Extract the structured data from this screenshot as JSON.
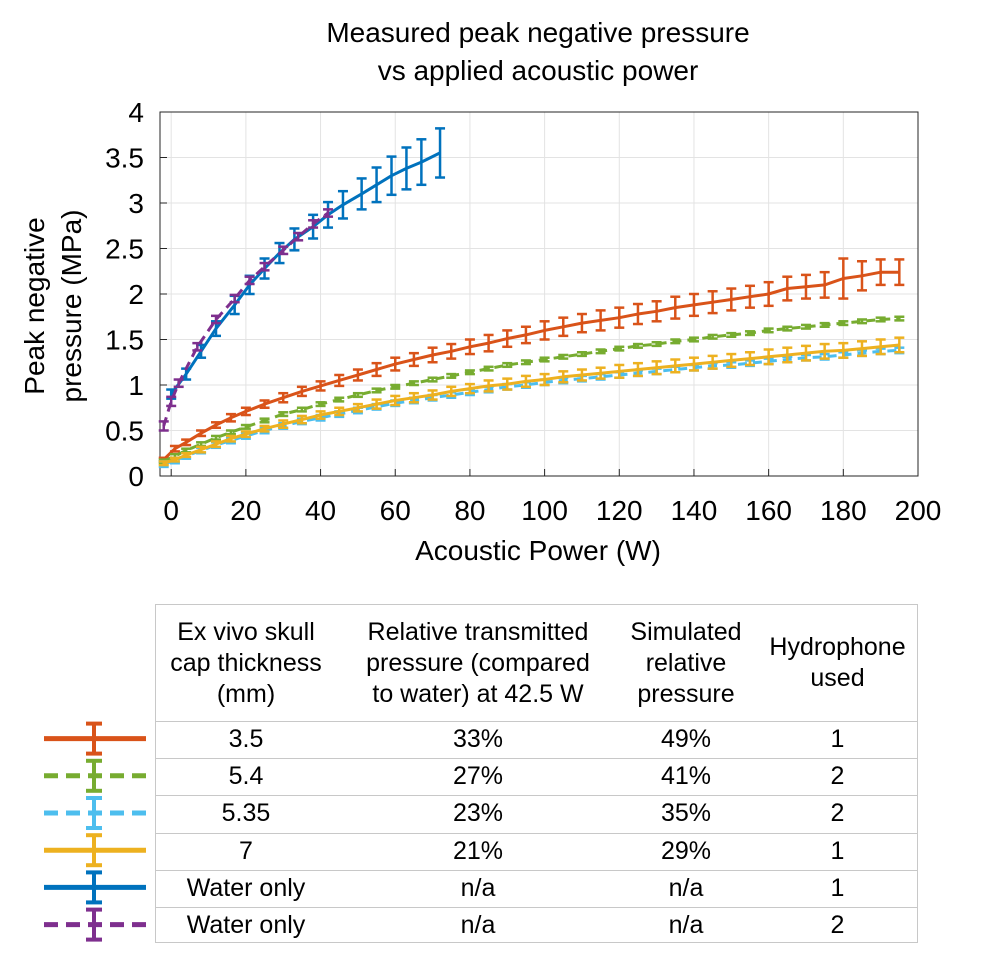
{
  "chart_data": {
    "type": "line",
    "title": "Measured peak negative pressure\nvs applied acoustic power",
    "title_lines": [
      "Measured peak negative pressure",
      "vs applied acoustic power"
    ],
    "xlabel": "Acoustic Power (W)",
    "ylabel_lines": [
      "Peak negative",
      "pressure (MPa)"
    ],
    "xlim": [
      -3,
      200
    ],
    "ylim": [
      0,
      4
    ],
    "xticks": [
      0,
      20,
      40,
      60,
      80,
      100,
      120,
      140,
      160,
      180,
      200
    ],
    "yticks": [
      0,
      0.5,
      1,
      1.5,
      2,
      2.5,
      3,
      3.5,
      4
    ],
    "xtick_labels": [
      "0",
      "20",
      "40",
      "60",
      "80",
      "100",
      "120",
      "140",
      "160",
      "180",
      "200"
    ],
    "ytick_labels": [
      "0",
      "0.5",
      "1",
      "1.5",
      "2",
      "2.5",
      "3",
      "3.5",
      "4"
    ],
    "grid": true,
    "series": [
      {
        "name": "3.5 mm skull",
        "color": "#D95319",
        "dash": "solid",
        "x": [
          -2,
          1,
          4,
          8,
          12,
          16,
          20,
          25,
          30,
          35,
          40,
          45,
          50,
          55,
          60,
          65,
          70,
          75,
          80,
          85,
          90,
          95,
          100,
          105,
          110,
          115,
          120,
          125,
          130,
          135,
          140,
          145,
          150,
          155,
          160,
          165,
          170,
          175,
          180,
          185,
          190,
          195
        ],
        "y": [
          0.18,
          0.3,
          0.37,
          0.47,
          0.56,
          0.64,
          0.71,
          0.79,
          0.86,
          0.93,
          0.99,
          1.05,
          1.11,
          1.17,
          1.23,
          1.28,
          1.33,
          1.37,
          1.42,
          1.46,
          1.51,
          1.55,
          1.6,
          1.64,
          1.68,
          1.71,
          1.74,
          1.78,
          1.81,
          1.85,
          1.88,
          1.91,
          1.94,
          1.97,
          2.0,
          2.06,
          2.08,
          2.1,
          2.17,
          2.2,
          2.24,
          2.24
        ],
        "err": [
          0.02,
          0.03,
          0.03,
          0.03,
          0.03,
          0.04,
          0.04,
          0.04,
          0.05,
          0.05,
          0.05,
          0.06,
          0.06,
          0.07,
          0.07,
          0.07,
          0.08,
          0.08,
          0.08,
          0.09,
          0.09,
          0.09,
          0.1,
          0.1,
          0.1,
          0.11,
          0.11,
          0.11,
          0.11,
          0.12,
          0.12,
          0.12,
          0.12,
          0.12,
          0.13,
          0.13,
          0.13,
          0.14,
          0.22,
          0.16,
          0.14,
          0.14
        ]
      },
      {
        "name": "5.4 mm skull",
        "color": "#77AC30",
        "dash": "dashed",
        "x": [
          -2,
          1,
          4,
          8,
          12,
          16,
          20,
          25,
          30,
          35,
          40,
          45,
          50,
          55,
          60,
          65,
          70,
          75,
          80,
          85,
          90,
          95,
          100,
          105,
          110,
          115,
          120,
          125,
          130,
          135,
          140,
          145,
          150,
          155,
          160,
          165,
          170,
          175,
          180,
          185,
          190,
          195
        ],
        "y": [
          0.16,
          0.22,
          0.28,
          0.35,
          0.42,
          0.48,
          0.54,
          0.61,
          0.68,
          0.73,
          0.79,
          0.84,
          0.89,
          0.94,
          0.98,
          1.02,
          1.06,
          1.1,
          1.14,
          1.18,
          1.22,
          1.25,
          1.28,
          1.31,
          1.34,
          1.37,
          1.4,
          1.43,
          1.45,
          1.48,
          1.5,
          1.53,
          1.55,
          1.57,
          1.6,
          1.62,
          1.64,
          1.66,
          1.68,
          1.7,
          1.72,
          1.73
        ],
        "err": [
          0.02,
          0.02,
          0.02,
          0.02,
          0.02,
          0.02,
          0.02,
          0.02,
          0.02,
          0.02,
          0.02,
          0.02,
          0.02,
          0.02,
          0.02,
          0.02,
          0.02,
          0.02,
          0.02,
          0.02,
          0.02,
          0.02,
          0.02,
          0.02,
          0.02,
          0.02,
          0.02,
          0.02,
          0.02,
          0.02,
          0.02,
          0.02,
          0.02,
          0.02,
          0.02,
          0.02,
          0.02,
          0.02,
          0.02,
          0.02,
          0.02,
          0.02
        ]
      },
      {
        "name": "5.35 mm skull",
        "color": "#4DBEEE",
        "dash": "dashed",
        "x": [
          -2,
          1,
          4,
          8,
          12,
          16,
          20,
          25,
          30,
          35,
          40,
          45,
          50,
          55,
          60,
          65,
          70,
          75,
          80,
          85,
          90,
          95,
          100,
          105,
          110,
          115,
          120,
          125,
          130,
          135,
          140,
          145,
          150,
          155,
          160,
          165,
          170,
          175,
          180,
          185,
          190,
          195
        ],
        "y": [
          0.13,
          0.17,
          0.22,
          0.28,
          0.34,
          0.39,
          0.44,
          0.5,
          0.55,
          0.6,
          0.64,
          0.68,
          0.72,
          0.76,
          0.8,
          0.83,
          0.86,
          0.89,
          0.92,
          0.95,
          0.98,
          1.0,
          1.03,
          1.05,
          1.07,
          1.09,
          1.11,
          1.13,
          1.15,
          1.17,
          1.19,
          1.21,
          1.22,
          1.24,
          1.26,
          1.28,
          1.3,
          1.31,
          1.33,
          1.35,
          1.37,
          1.38
        ],
        "err": [
          0.03,
          0.03,
          0.03,
          0.03,
          0.03,
          0.03,
          0.03,
          0.03,
          0.03,
          0.03,
          0.03,
          0.03,
          0.03,
          0.03,
          0.03,
          0.03,
          0.03,
          0.03,
          0.03,
          0.03,
          0.03,
          0.03,
          0.03,
          0.03,
          0.03,
          0.03,
          0.03,
          0.03,
          0.03,
          0.03,
          0.03,
          0.03,
          0.03,
          0.03,
          0.03,
          0.03,
          0.03,
          0.03,
          0.03,
          0.03,
          0.03,
          0.03
        ]
      },
      {
        "name": "7 mm skull",
        "color": "#EDB120",
        "dash": "solid",
        "x": [
          -2,
          1,
          4,
          8,
          12,
          16,
          20,
          25,
          30,
          35,
          40,
          45,
          50,
          55,
          60,
          65,
          70,
          75,
          80,
          85,
          90,
          95,
          100,
          105,
          110,
          115,
          120,
          125,
          130,
          135,
          140,
          145,
          150,
          155,
          160,
          165,
          170,
          175,
          180,
          185,
          190,
          195
        ],
        "y": [
          0.14,
          0.18,
          0.23,
          0.29,
          0.35,
          0.41,
          0.46,
          0.52,
          0.57,
          0.62,
          0.67,
          0.71,
          0.75,
          0.79,
          0.83,
          0.86,
          0.89,
          0.93,
          0.96,
          0.99,
          1.01,
          1.04,
          1.06,
          1.09,
          1.11,
          1.13,
          1.15,
          1.17,
          1.19,
          1.21,
          1.23,
          1.25,
          1.27,
          1.29,
          1.31,
          1.33,
          1.35,
          1.37,
          1.38,
          1.4,
          1.42,
          1.44
        ],
        "err": [
          0.02,
          0.02,
          0.02,
          0.03,
          0.03,
          0.03,
          0.03,
          0.03,
          0.04,
          0.04,
          0.04,
          0.04,
          0.04,
          0.05,
          0.05,
          0.05,
          0.05,
          0.05,
          0.05,
          0.06,
          0.06,
          0.06,
          0.06,
          0.06,
          0.06,
          0.06,
          0.07,
          0.07,
          0.07,
          0.07,
          0.07,
          0.07,
          0.07,
          0.07,
          0.08,
          0.08,
          0.08,
          0.08,
          0.08,
          0.08,
          0.08,
          0.08
        ]
      },
      {
        "name": "Water only (hydrophone 1)",
        "color": "#0072BD",
        "dash": "solid",
        "x": [
          0,
          4,
          8,
          12,
          17,
          21,
          25,
          29,
          33,
          38,
          42,
          46,
          51,
          55,
          59,
          63,
          67,
          72
        ],
        "y": [
          0.9,
          1.12,
          1.37,
          1.62,
          1.88,
          2.1,
          2.28,
          2.45,
          2.6,
          2.74,
          2.87,
          2.98,
          3.1,
          3.2,
          3.3,
          3.38,
          3.45,
          3.55
        ],
        "err": [
          0.05,
          0.06,
          0.07,
          0.08,
          0.1,
          0.1,
          0.11,
          0.11,
          0.12,
          0.13,
          0.14,
          0.15,
          0.17,
          0.19,
          0.21,
          0.23,
          0.25,
          0.27
        ]
      },
      {
        "name": "Water only (hydrophone 2)",
        "color": "#7E2F8E",
        "dash": "dashed",
        "x": [
          -2,
          0,
          2,
          7,
          12,
          17,
          21,
          25,
          30,
          34,
          38,
          42
        ],
        "y": [
          0.55,
          0.82,
          1.02,
          1.42,
          1.72,
          1.95,
          2.15,
          2.3,
          2.48,
          2.63,
          2.77,
          2.89
        ],
        "err": [
          0.05,
          0.05,
          0.04,
          0.04,
          0.04,
          0.04,
          0.04,
          0.04,
          0.04,
          0.04,
          0.04,
          0.04
        ]
      }
    ]
  },
  "legend_table": {
    "headers": [
      "Ex vivo skull\ncap thickness\n(mm)",
      "Relative transmitted\npressure (compared\nto water) at 42.5 W",
      "Simulated\nrelative\npressure",
      "Hydrophone\nused"
    ],
    "rows": [
      {
        "color": "#D95319",
        "dash": "solid",
        "thickness": "3.5",
        "relative": "33%",
        "simulated": "49%",
        "hydrophone": "1"
      },
      {
        "color": "#77AC30",
        "dash": "dashed",
        "thickness": "5.4",
        "relative": "27%",
        "simulated": "41%",
        "hydrophone": "2"
      },
      {
        "color": "#4DBEEE",
        "dash": "dashed",
        "thickness": "5.35",
        "relative": "23%",
        "simulated": "35%",
        "hydrophone": "2"
      },
      {
        "color": "#EDB120",
        "dash": "solid",
        "thickness": "7",
        "relative": "21%",
        "simulated": "29%",
        "hydrophone": "1"
      },
      {
        "color": "#0072BD",
        "dash": "solid",
        "thickness": "Water only",
        "relative": "n/a",
        "simulated": "n/a",
        "hydrophone": "1"
      },
      {
        "color": "#7E2F8E",
        "dash": "dashed",
        "thickness": "Water only",
        "relative": "n/a",
        "simulated": "n/a",
        "hydrophone": "2"
      }
    ]
  }
}
